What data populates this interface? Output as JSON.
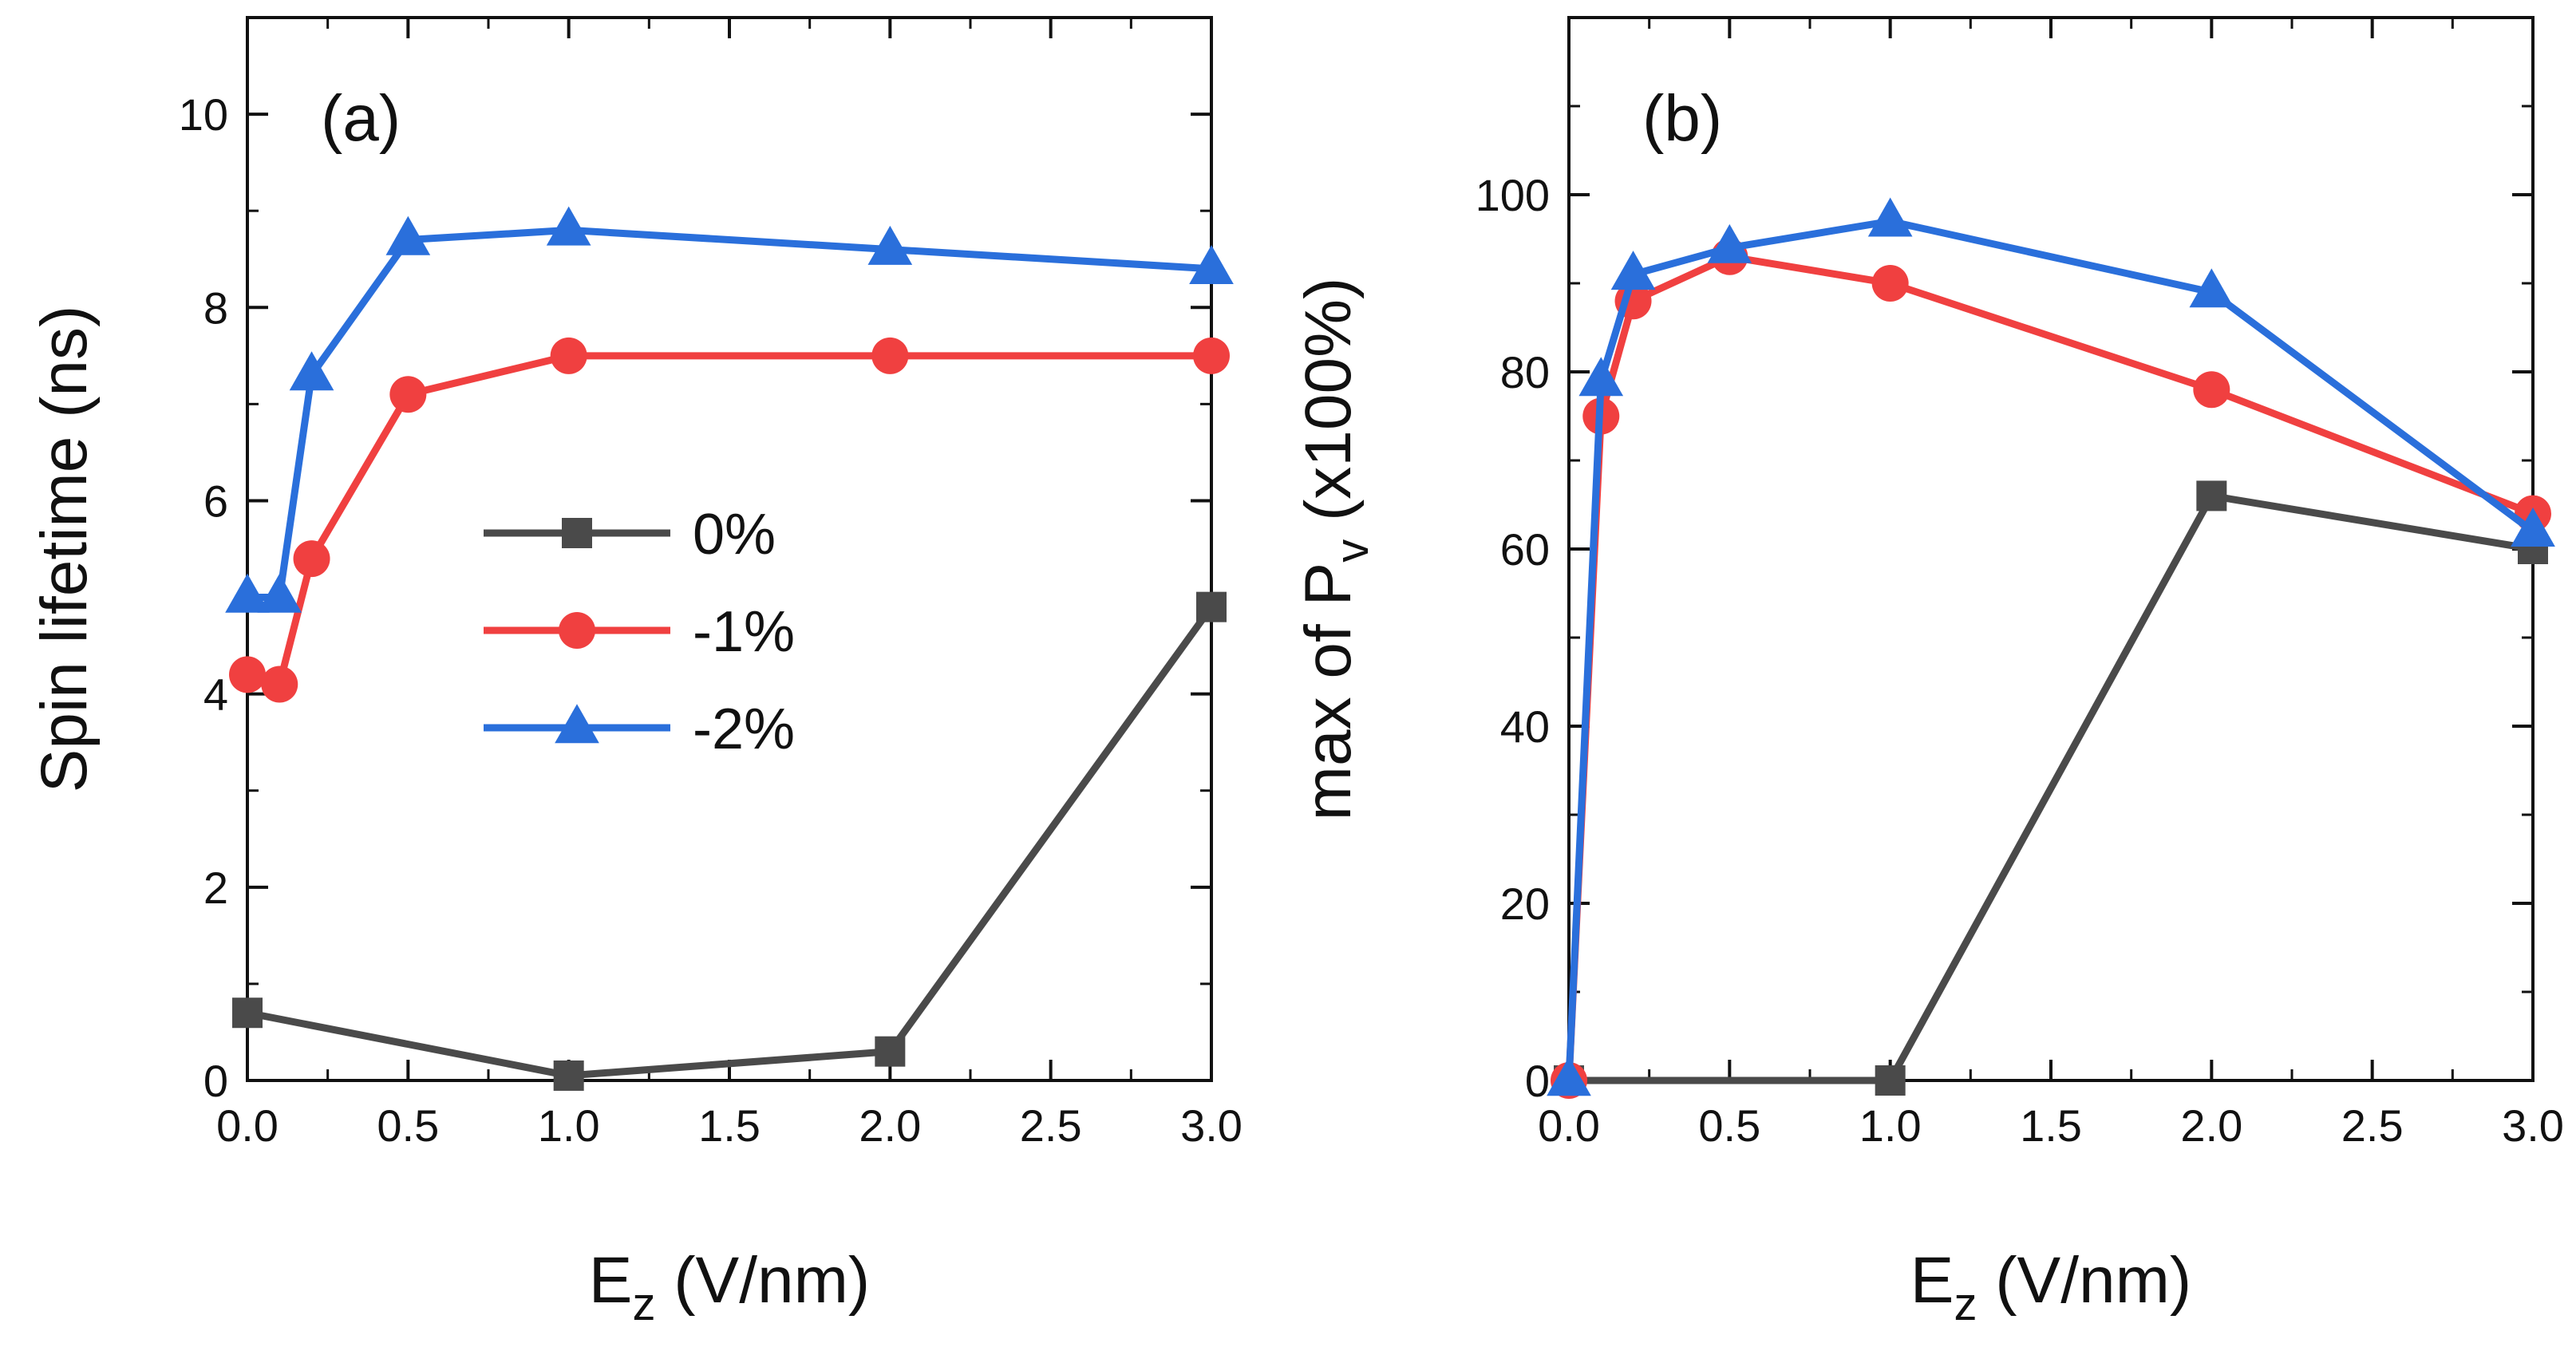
{
  "chart_data": [
    {
      "type": "line",
      "panel_label": "(a)",
      "xlabel_main": "E",
      "xlabel_sub": "z",
      "xlabel_rest": " (V/nm)",
      "ylabel": "Spin lifetime (ns)",
      "xlim": [
        0,
        3
      ],
      "ylim": [
        0,
        11
      ],
      "xticks": [
        "0.0",
        "0.5",
        "1.0",
        "1.5",
        "2.0",
        "2.5",
        "3.0"
      ],
      "yticks": [
        "0",
        "2",
        "4",
        "6",
        "8",
        "10"
      ],
      "legend": {
        "position": "center-left"
      },
      "series": [
        {
          "name": "0%",
          "marker": "square",
          "color": "#4a4a4a",
          "x": [
            0.0,
            1.0,
            2.0,
            3.0
          ],
          "y": [
            0.7,
            0.05,
            0.3,
            4.9
          ]
        },
        {
          "name": "-1%",
          "marker": "circle",
          "color": "#f04040",
          "x": [
            0.0,
            0.1,
            0.2,
            0.5,
            1.0,
            2.0,
            3.0
          ],
          "y": [
            4.2,
            4.1,
            5.4,
            7.1,
            7.5,
            7.5,
            7.5
          ]
        },
        {
          "name": "-2%",
          "marker": "triangle",
          "color": "#2a6fdb",
          "x": [
            0.0,
            0.1,
            0.2,
            0.5,
            1.0,
            2.0,
            3.0
          ],
          "y": [
            5.0,
            5.0,
            7.3,
            8.7,
            8.8,
            8.6,
            8.4
          ]
        }
      ]
    },
    {
      "type": "line",
      "panel_label": "(b)",
      "xlabel_main": "E",
      "xlabel_sub": "z",
      "xlabel_rest": " (V/nm)",
      "ylabel_main": "max of P",
      "ylabel_sub": "v",
      "ylabel_rest": " (x100%)",
      "xlim": [
        0,
        3
      ],
      "ylim": [
        0,
        120
      ],
      "xticks": [
        "0.0",
        "0.5",
        "1.0",
        "1.5",
        "2.0",
        "2.5",
        "3.0"
      ],
      "yticks": [
        "0",
        "20",
        "40",
        "60",
        "80",
        "100"
      ],
      "series": [
        {
          "name": "0%",
          "marker": "square",
          "color": "#4a4a4a",
          "x": [
            0.0,
            1.0,
            2.0,
            3.0
          ],
          "y": [
            0,
            0,
            66,
            60
          ]
        },
        {
          "name": "-1%",
          "marker": "circle",
          "color": "#f04040",
          "x": [
            0.0,
            0.1,
            0.2,
            0.5,
            1.0,
            2.0,
            3.0
          ],
          "y": [
            0,
            75,
            88,
            93,
            90,
            78,
            64
          ]
        },
        {
          "name": "-2%",
          "marker": "triangle",
          "color": "#2a6fdb",
          "x": [
            0.0,
            0.1,
            0.2,
            0.5,
            1.0,
            2.0,
            3.0
          ],
          "y": [
            0,
            79,
            91,
            94,
            97,
            89,
            62
          ]
        }
      ]
    }
  ]
}
